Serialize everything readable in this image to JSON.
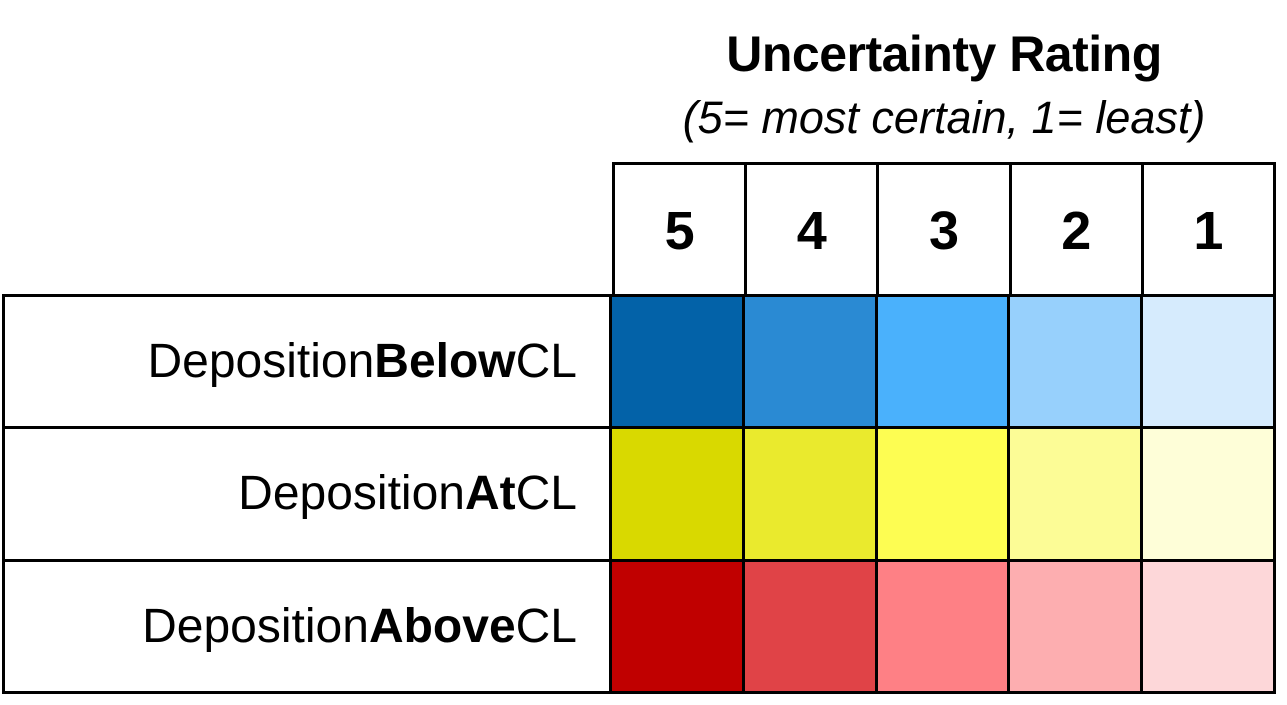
{
  "header": {
    "title": "Uncertainty Rating",
    "subtitle": "(5= most certain, 1= least)"
  },
  "ratings": [
    "5",
    "4",
    "3",
    "2",
    "1"
  ],
  "rows": [
    {
      "prefix": "Deposition ",
      "emphasis": "Below",
      "suffix": " CL",
      "colors": [
        "#0362A8",
        "#2A8AD3",
        "#4AB1FC",
        "#97D0FC",
        "#D6EBFD"
      ]
    },
    {
      "prefix": "Deposition ",
      "emphasis": "At",
      "suffix": " CL",
      "colors": [
        "#D9D900",
        "#EAEA2D",
        "#FDFD52",
        "#FCFC96",
        "#FEFED8"
      ]
    },
    {
      "prefix": "Deposition ",
      "emphasis": "Above",
      "suffix": " CL",
      "colors": [
        "#C00000",
        "#E04347",
        "#FE8085",
        "#FDAEB0",
        "#FDD7D9"
      ]
    }
  ]
}
